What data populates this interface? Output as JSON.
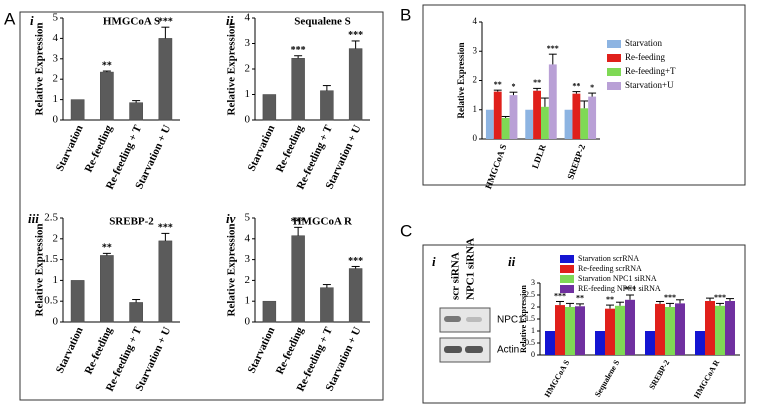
{
  "panel_labels": [
    "A",
    "B",
    "C"
  ],
  "blot": {
    "label": "i",
    "lanes": [
      "scr siRNA",
      "NPC1 siRNA"
    ],
    "bands": [
      "NPC1",
      "Actin"
    ]
  },
  "chart_data": [
    {
      "type": "bar",
      "label": "i",
      "title": "HMGCoA S",
      "ylabel": "Relative Expression",
      "categories": [
        "Starvation",
        "Re-feeding",
        "Re-feeding + T",
        "Starvation + U"
      ],
      "values": [
        1,
        2.35,
        0.85,
        4.0
      ],
      "errors": [
        0,
        0.05,
        0.1,
        0.55
      ],
      "significance": [
        null,
        "**",
        null,
        "***"
      ],
      "color": "#5b5b5b",
      "ylim": [
        0,
        5
      ],
      "yticks": [
        0,
        1,
        2,
        3,
        4,
        5
      ]
    },
    {
      "type": "bar",
      "label": "ii",
      "title": "Sequalene S",
      "ylabel": "Relative Expression",
      "categories": [
        "Starvation",
        "Re-feeding",
        "Re-feeding + T",
        "Starvation + U"
      ],
      "values": [
        1,
        2.42,
        1.15,
        2.8
      ],
      "errors": [
        0,
        0.1,
        0.2,
        0.3
      ],
      "significance": [
        null,
        "***",
        null,
        "***"
      ],
      "color": "#5b5b5b",
      "ylim": [
        0,
        4
      ],
      "yticks": [
        0,
        1,
        2,
        3,
        4
      ]
    },
    {
      "type": "bar",
      "label": "iii",
      "title": "SREBP-2",
      "ylabel": "Relative Expression",
      "categories": [
        "Starvation",
        "Re-feeding",
        "Re-feeding + T",
        "Starvation + U"
      ],
      "values": [
        1,
        1.6,
        0.47,
        1.95
      ],
      "errors": [
        0,
        0.05,
        0.07,
        0.18
      ],
      "significance": [
        null,
        "**",
        null,
        "***"
      ],
      "color": "#5b5b5b",
      "ylim": [
        0,
        2.5
      ],
      "yticks": [
        0,
        0.5,
        1,
        1.5,
        2,
        2.5
      ]
    },
    {
      "type": "bar",
      "label": "iv",
      "title": "HMGCoA R",
      "ylabel": "Relative Expression",
      "categories": [
        "Starvation",
        "Re-feeding",
        "Re-feeding + T",
        "Starvation + U"
      ],
      "values": [
        1,
        4.15,
        1.65,
        2.57
      ],
      "errors": [
        0,
        0.4,
        0.15,
        0.1
      ],
      "significance": [
        null,
        "***",
        null,
        "***"
      ],
      "color": "#5b5b5b",
      "ylim": [
        0,
        5
      ],
      "yticks": [
        0,
        1,
        2,
        3,
        4,
        5
      ]
    },
    {
      "type": "grouped-bar",
      "ylabel": "Relative Expression",
      "categories": [
        "HMGCoA S",
        "LDLR",
        "SREBP-2"
      ],
      "series": [
        {
          "name": "Starvation",
          "color": "#8db4e2",
          "values": [
            1,
            1,
            1
          ],
          "errors": [
            0,
            0,
            0
          ],
          "significance": [
            null,
            null,
            null
          ]
        },
        {
          "name": "Re-feeding",
          "color": "#e0201b",
          "values": [
            1.62,
            1.65,
            1.55
          ],
          "errors": [
            0.05,
            0.08,
            0.07
          ],
          "significance": [
            "**",
            "**",
            "**"
          ]
        },
        {
          "name": "Re-feeding+T",
          "color": "#7fd955",
          "values": [
            0.72,
            1.1,
            1.05
          ],
          "errors": [
            0.05,
            0.3,
            0.25
          ],
          "significance": [
            null,
            null,
            null
          ]
        },
        {
          "name": "Starvation+U",
          "color": "#b9a0d6",
          "values": [
            1.5,
            2.55,
            1.45
          ],
          "errors": [
            0.1,
            0.35,
            0.12
          ],
          "significance": [
            "*",
            "***",
            "*"
          ]
        }
      ],
      "ylim": [
        0,
        4
      ],
      "yticks": [
        0,
        1,
        2,
        3,
        4
      ]
    },
    {
      "type": "grouped-bar",
      "label": "ii",
      "ylabel": "Relative Expression",
      "categories": [
        "HMGCoA S",
        "Sequalene S",
        "SREBP-2",
        "HMGCoA R"
      ],
      "series": [
        {
          "name": "Starvation scrRNA",
          "color": "#1414d2",
          "values": [
            1,
            1,
            1,
            1
          ],
          "errors": [
            0,
            0,
            0,
            0
          ],
          "significance": [
            null,
            null,
            null,
            null
          ]
        },
        {
          "name": "Re-feeding scrRNA",
          "color": "#e0201b",
          "values": [
            2.08,
            1.93,
            2.13,
            2.25
          ],
          "errors": [
            0.15,
            0.15,
            0.1,
            0.12
          ],
          "significance": [
            "***",
            "**",
            null,
            null
          ]
        },
        {
          "name": "Starvation NPC1 siRNA",
          "color": "#7fd955",
          "values": [
            2.0,
            2.05,
            2.0,
            2.05
          ],
          "errors": [
            0.15,
            0.15,
            0.15,
            0.1
          ],
          "significance": [
            null,
            null,
            "***",
            "***"
          ]
        },
        {
          "name": "RE-feeding NPC1 siRNA",
          "color": "#7030a0",
          "values": [
            2.03,
            2.3,
            2.15,
            2.25
          ],
          "errors": [
            0.1,
            0.2,
            0.15,
            0.1
          ],
          "significance": [
            "**",
            "***",
            null,
            null
          ]
        }
      ],
      "ylim": [
        0,
        3
      ],
      "yticks": [
        0,
        0.5,
        1,
        1.5,
        2,
        2.5,
        3
      ]
    }
  ]
}
